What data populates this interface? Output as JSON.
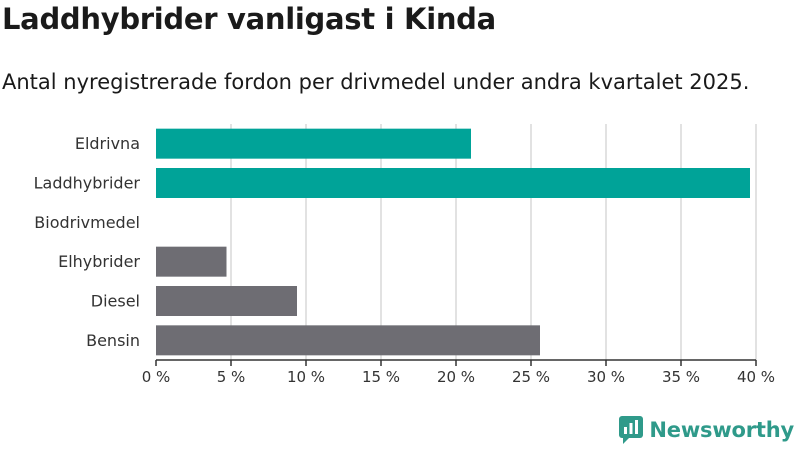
{
  "title": "Laddhybrider vanligast i Kinda",
  "subtitle": "Antal nyregistrerade fordon per drivmedel under andra kvartalet 2025.",
  "brand": {
    "name": "Newsworthy",
    "icon": "newsworthy-logo-icon",
    "color": "#2f9a8a"
  },
  "colors": {
    "highlight": "#00a398",
    "default": "#6e6d73",
    "grid": "#d9d9d9",
    "axis": "#333333"
  },
  "chart_data": {
    "type": "bar",
    "orientation": "horizontal",
    "categories": [
      "Eldrivna",
      "Laddhybrider",
      "Biodrivmedel",
      "Elhybrider",
      "Diesel",
      "Bensin"
    ],
    "values": [
      21.0,
      39.6,
      0,
      4.7,
      9.4,
      25.6
    ],
    "highlighted": [
      true,
      true,
      false,
      false,
      false,
      false
    ],
    "xlim": [
      0,
      40
    ],
    "xticks": [
      0,
      5,
      10,
      15,
      20,
      25,
      30,
      35,
      40
    ],
    "xtick_labels": [
      "0 %",
      "5 %",
      "10 %",
      "15 %",
      "20 %",
      "25 %",
      "30 %",
      "35 %",
      "40 %"
    ],
    "grid": true,
    "legend": "none"
  }
}
